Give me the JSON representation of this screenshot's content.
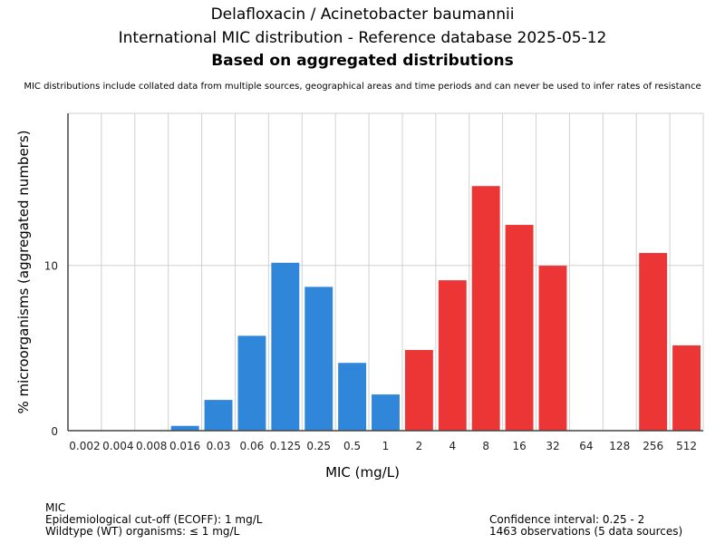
{
  "header": {
    "title_line1": "Delafloxacin / Acinetobacter baumannii",
    "title_line2": "International MIC distribution - Reference database 2025-05-12",
    "title_line3": "Based on aggregated distributions",
    "subtitle": "MIC distributions include collated data from multiple sources, geographical areas and time periods and can never be used to infer rates of resistance"
  },
  "chart_data": {
    "type": "bar",
    "title": "Delafloxacin / Acinetobacter baumannii",
    "xlabel": "MIC (mg/L)",
    "ylabel": "% microorganisms (aggregated numbers)",
    "categories": [
      "0.002",
      "0.004",
      "0.008",
      "0.016",
      "0.03",
      "0.06",
      "0.125",
      "0.25",
      "0.5",
      "1",
      "2",
      "4",
      "8",
      "16",
      "32",
      "64",
      "128",
      "256",
      "512"
    ],
    "values": [
      0,
      0,
      0,
      0.29,
      1.86,
      5.74,
      10.16,
      8.7,
      4.1,
      2.19,
      4.88,
      9.1,
      14.8,
      12.45,
      9.98,
      0,
      0,
      10.75,
      5.16
    ],
    "ylim": [
      0,
      19.2
    ],
    "yticks": [
      0,
      10
    ],
    "grid": true,
    "series_colors": {
      "wildtype": "#3086d9",
      "non_wildtype": "#ec3535"
    },
    "ecoff_category": "1"
  },
  "footer": {
    "left": [
      "MIC",
      "Epidemiological cut-off (ECOFF): 1 mg/L",
      "Wildtype (WT) organisms: ≤ 1 mg/L"
    ],
    "right": [
      "Confidence interval: 0.25 - 2",
      "1463 observations (5 data sources)"
    ]
  }
}
